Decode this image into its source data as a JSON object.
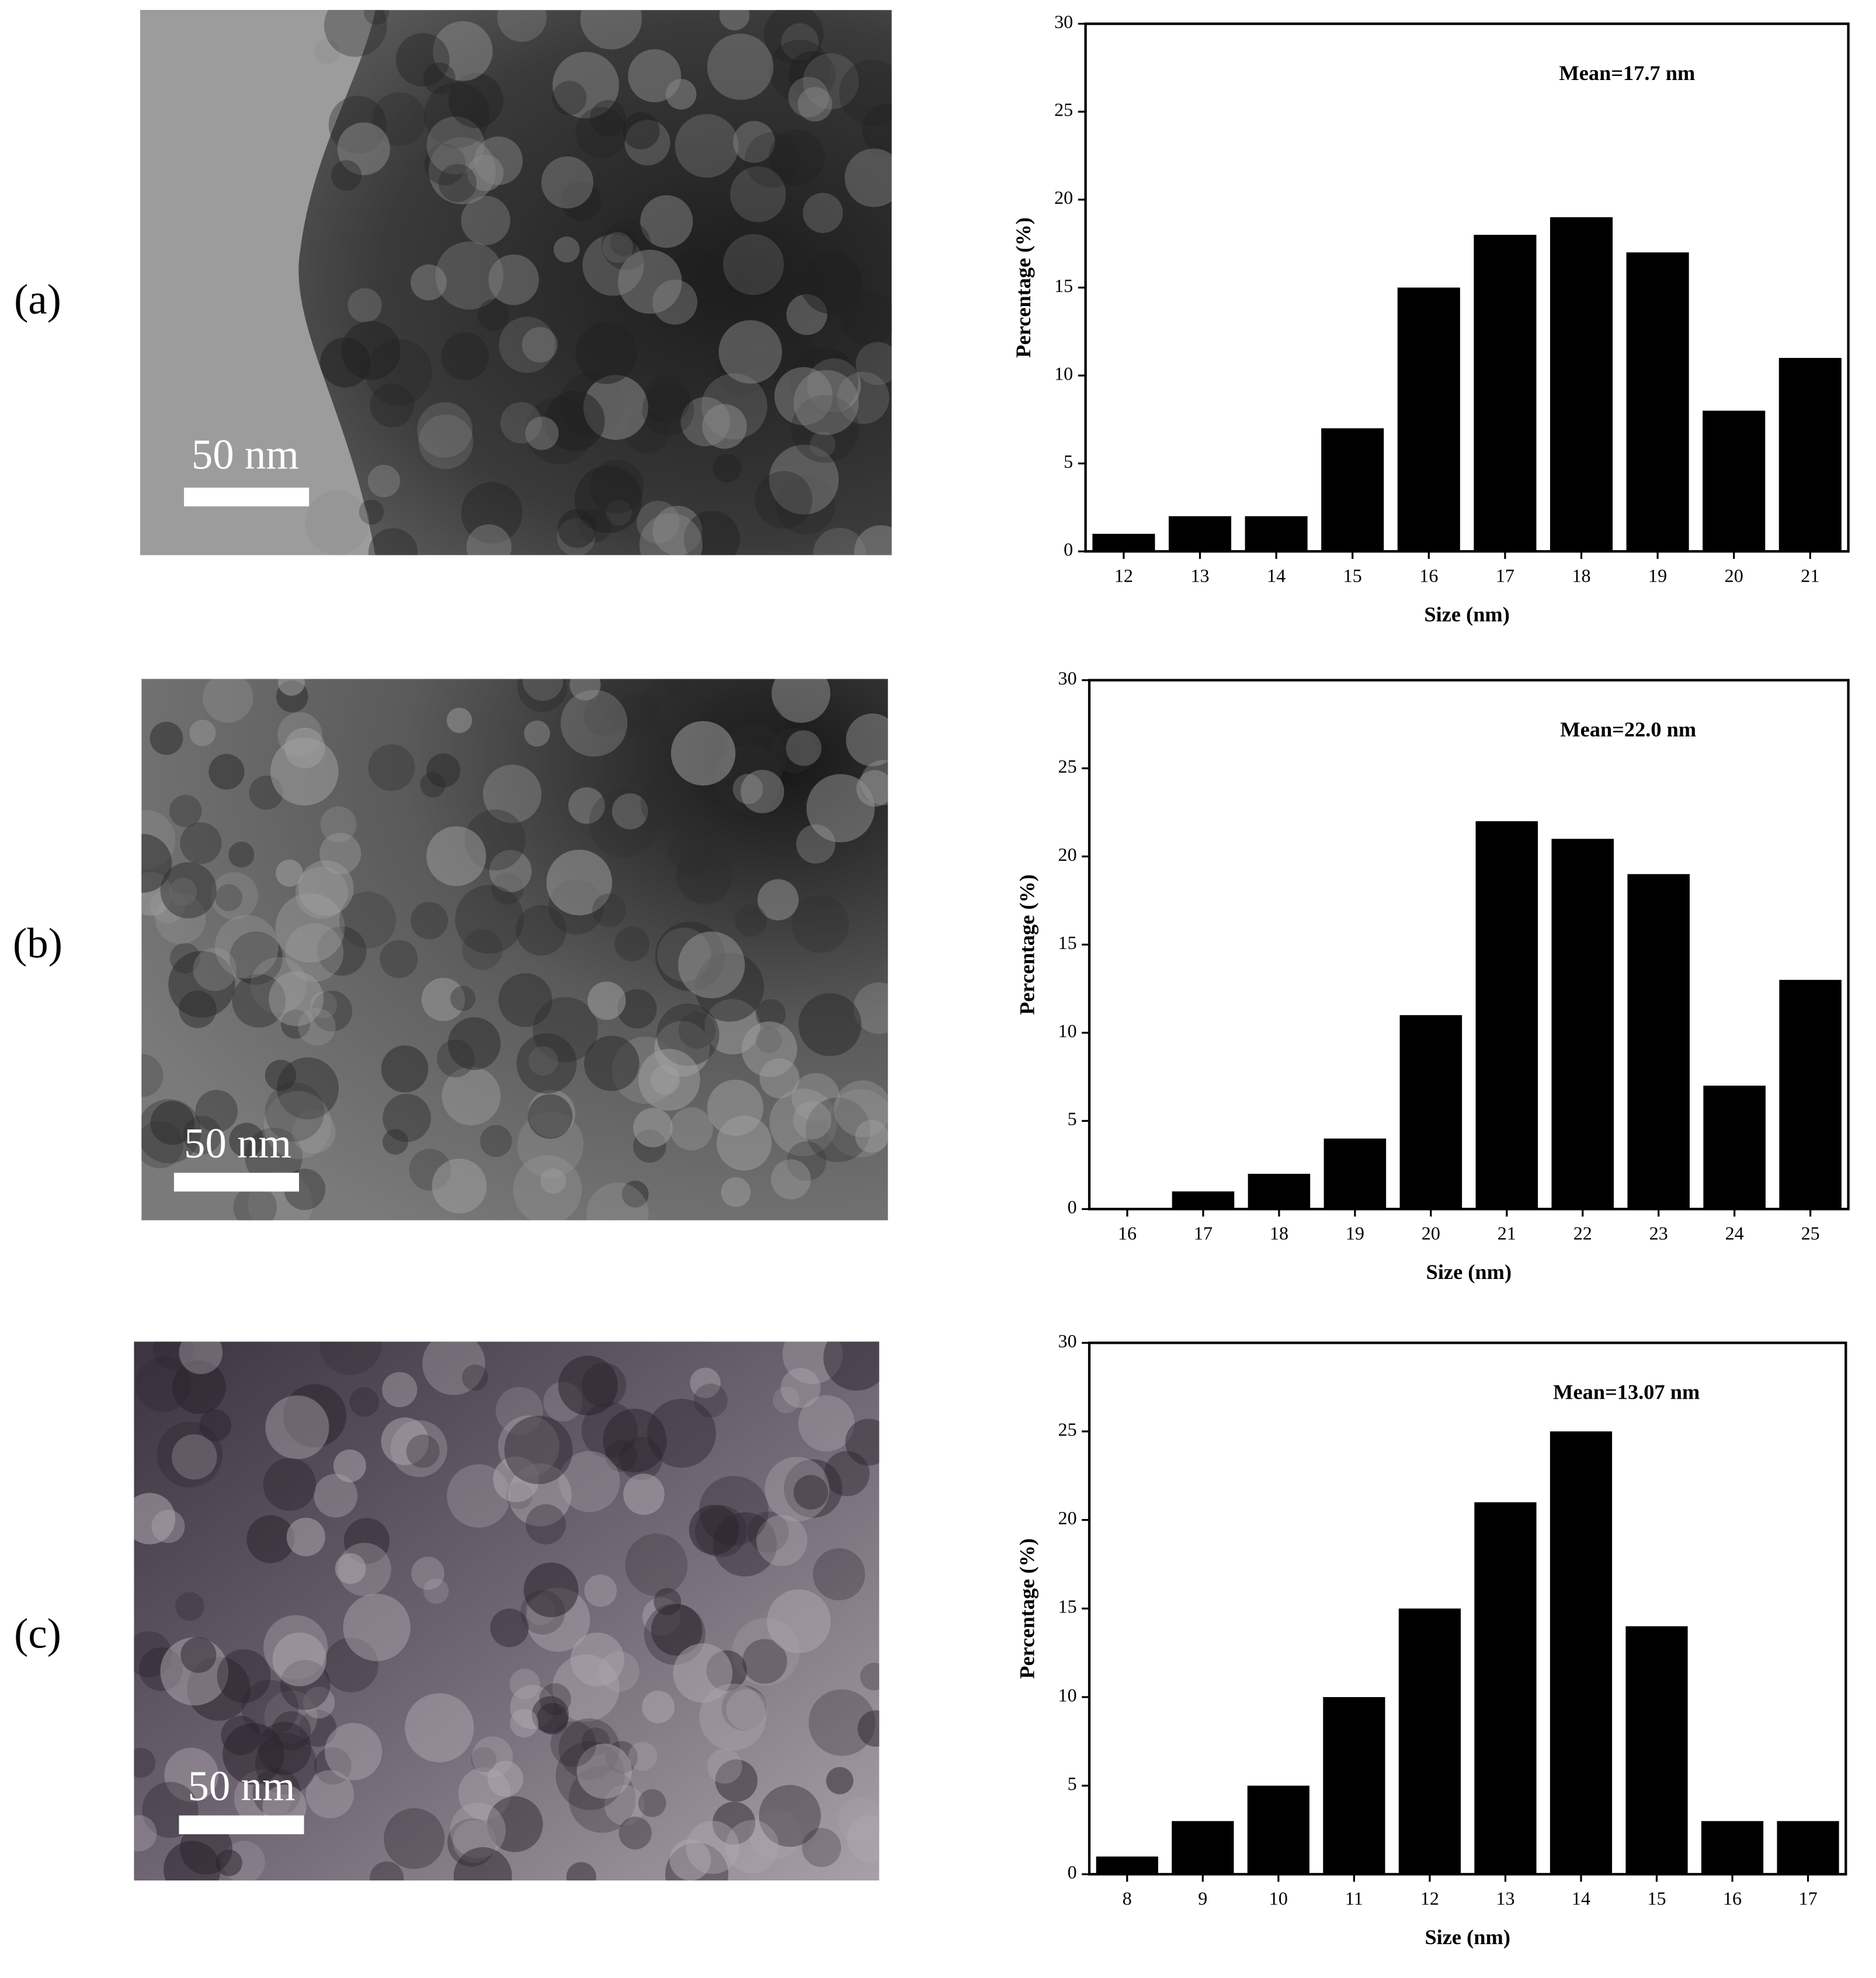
{
  "panels": [
    {
      "label": "(a)",
      "scale_bar": "50 nm"
    },
    {
      "label": "(b)",
      "scale_bar": "50 nm"
    },
    {
      "label": "(c)",
      "scale_bar": "50 nm"
    }
  ],
  "chart_data": [
    {
      "type": "bar",
      "annotation": "Mean=17.7 nm",
      "x_label": "Size (nm)",
      "y_label": "Percentage (%)",
      "categories": [
        "12",
        "13",
        "14",
        "15",
        "16",
        "17",
        "18",
        "19",
        "20",
        "21"
      ],
      "values": [
        1,
        2,
        2,
        7,
        15,
        18,
        19,
        17,
        8,
        11
      ],
      "color": "#000000",
      "ylim": [
        0,
        30
      ],
      "yticks": [
        0,
        5,
        10,
        15,
        20,
        25,
        30
      ]
    },
    {
      "type": "bar",
      "annotation": "Mean=22.0 nm",
      "x_label": "Size (nm)",
      "y_label": "Percentage (%)",
      "categories": [
        "16",
        "17",
        "18",
        "19",
        "20",
        "21",
        "22",
        "23",
        "24",
        "25"
      ],
      "values": [
        0,
        1,
        2,
        4,
        11,
        22,
        21,
        19,
        7,
        13
      ],
      "color": "#000000",
      "ylim": [
        0,
        30
      ],
      "yticks": [
        0,
        5,
        10,
        15,
        20,
        25,
        30
      ]
    },
    {
      "type": "bar",
      "annotation": "Mean=13.07 nm",
      "x_label": "Size (nm)",
      "y_label": "Percentage (%)",
      "categories": [
        "8",
        "9",
        "10",
        "11",
        "12",
        "13",
        "14",
        "15",
        "16",
        "17"
      ],
      "values": [
        1,
        3,
        5,
        10,
        15,
        21,
        25,
        14,
        3,
        3
      ],
      "color": "#000000",
      "ylim": [
        0,
        30
      ],
      "yticks": [
        0,
        5,
        10,
        15,
        20,
        25,
        30
      ]
    }
  ]
}
